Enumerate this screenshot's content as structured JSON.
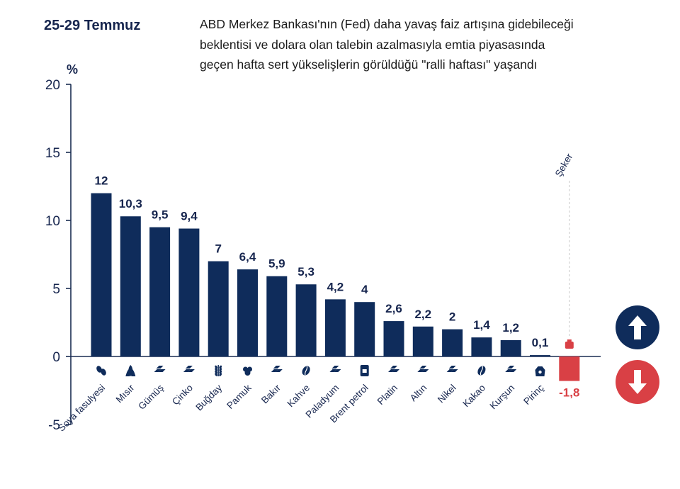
{
  "header": {
    "date_range": "25-29 Temmuz",
    "subtitle_lines": [
      "ABD Merkez Bankası'nın (Fed) daha yavaş faiz artışına gidebileceği",
      "beklentisi ve dolara olan talebin azalmasıyla emtia piyasasında",
      "geçen hafta sert yükselişlerin görüldüğü \"ralli haftası\" yaşandı"
    ]
  },
  "legend": {
    "up_icon": "arrow-up-icon",
    "down_icon": "arrow-down-icon"
  },
  "colors": {
    "positive": "#0f2c5b",
    "negative": "#d94045",
    "axis": "#1a2d52",
    "text": "#16254e"
  },
  "chart_data": {
    "type": "bar",
    "ylabel": "%",
    "ylim": [
      -5,
      20
    ],
    "yticks": [
      -5,
      0,
      5,
      10,
      15,
      20
    ],
    "categories": [
      "Soya fasulyesi",
      "Mısır",
      "Gümüş",
      "Çinko",
      "Buğday",
      "Pamuk",
      "Bakır",
      "Kahve",
      "Paladyum",
      "Brent petrol",
      "Platin",
      "Altın",
      "Nikel",
      "Kakao",
      "Kurşun",
      "Pirinç",
      "Şeker"
    ],
    "values": [
      12,
      10.3,
      9.5,
      9.4,
      7,
      6.4,
      5.9,
      5.3,
      4.2,
      4,
      2.6,
      2.2,
      2,
      1.4,
      1.2,
      0.1,
      -1.8
    ],
    "value_labels": [
      "12",
      "10,3",
      "9,5",
      "9,4",
      "7",
      "6,4",
      "5,9",
      "5,3",
      "4,2",
      "4",
      "2,6",
      "2,2",
      "2",
      "1,4",
      "1,2",
      "0,1",
      "-1,8"
    ],
    "icons": [
      "soybean-icon",
      "corn-icon",
      "metal-ingot-icon",
      "metal-ingot-icon",
      "wheat-icon",
      "cotton-icon",
      "metal-ingot-icon",
      "coffee-bean-icon",
      "metal-ingot-icon",
      "oil-barrel-icon",
      "metal-ingot-icon",
      "metal-ingot-icon",
      "metal-ingot-icon",
      "cocoa-bean-icon",
      "metal-ingot-icon",
      "rice-sack-icon",
      "sugar-bowl-icon"
    ]
  }
}
